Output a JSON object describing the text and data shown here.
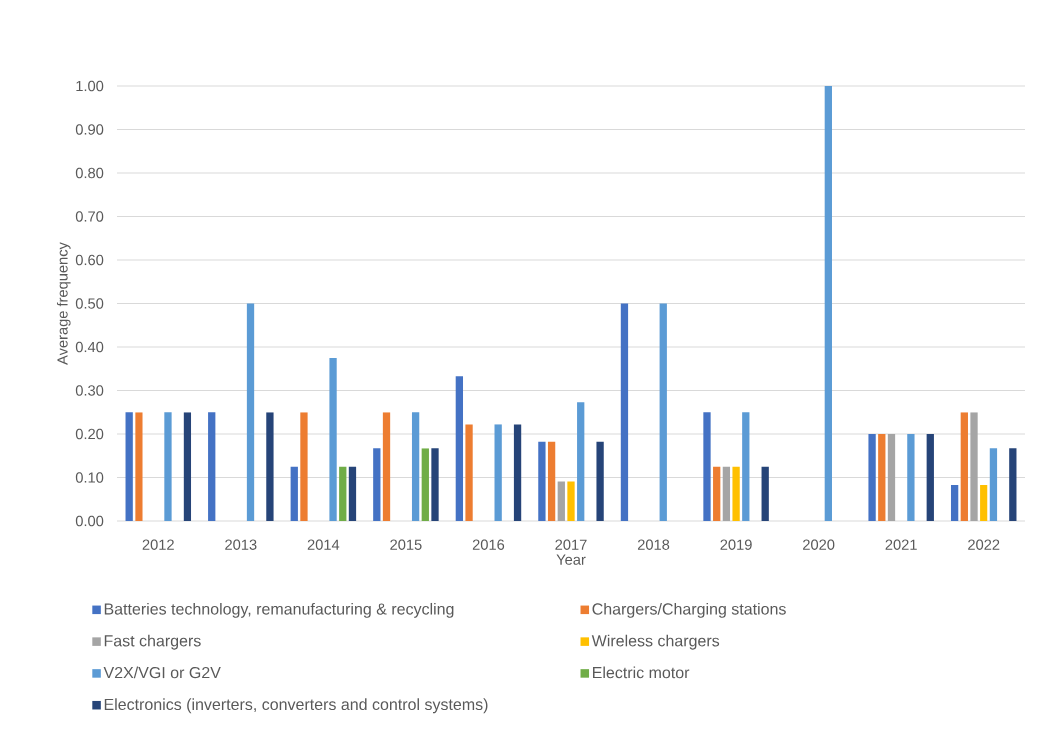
{
  "chart_data": {
    "type": "bar",
    "xlabel": "Year",
    "ylabel": "Average frequency",
    "categories": [
      "2012",
      "2013",
      "2014",
      "2015",
      "2016",
      "2017",
      "2018",
      "2019",
      "2020",
      "2021",
      "2022"
    ],
    "series": [
      {
        "name": "Batteries technology, remanufacturing & recycling",
        "color": "#4472c4",
        "values": [
          0.25,
          0.25,
          0.125,
          0.167,
          0.333,
          0.182,
          0.5,
          0.25,
          null,
          0.2,
          0.083
        ]
      },
      {
        "name": "Chargers/Charging stations",
        "color": "#ed7d31",
        "values": [
          0.25,
          null,
          0.25,
          0.25,
          0.222,
          0.182,
          null,
          0.125,
          null,
          0.2,
          0.25
        ]
      },
      {
        "name": "Fast chargers",
        "color": "#a5a5a5",
        "values": [
          null,
          null,
          null,
          null,
          null,
          0.091,
          null,
          0.125,
          null,
          0.2,
          0.25
        ]
      },
      {
        "name": "Wireless chargers",
        "color": "#ffc000",
        "values": [
          null,
          null,
          null,
          null,
          null,
          0.091,
          null,
          0.125,
          null,
          null,
          0.083
        ]
      },
      {
        "name": "V2X/VGI or G2V",
        "color": "#5b9bd5",
        "values": [
          0.25,
          0.5,
          0.375,
          0.25,
          0.222,
          0.273,
          0.5,
          0.25,
          1.0,
          0.2,
          0.167
        ]
      },
      {
        "name": "Electric motor",
        "color": "#70ad47",
        "values": [
          null,
          null,
          0.125,
          0.167,
          null,
          null,
          null,
          null,
          null,
          null,
          null
        ]
      },
      {
        "name": "Electronics (inverters, converters and control systems)",
        "color": "#264478",
        "values": [
          0.25,
          0.25,
          0.125,
          0.167,
          0.222,
          0.182,
          null,
          0.125,
          null,
          0.2,
          0.167
        ]
      }
    ],
    "ylim": [
      0,
      1
    ],
    "yticks": [
      {
        "value": 0,
        "label": "0.00"
      },
      {
        "value": 0.1,
        "label": "0.10"
      },
      {
        "value": 0.2,
        "label": "0.20"
      },
      {
        "value": 0.3,
        "label": "0.30"
      },
      {
        "value": 0.4,
        "label": "0.40"
      },
      {
        "value": 0.5,
        "label": "0.50"
      },
      {
        "value": 0.6,
        "label": "0.60"
      },
      {
        "value": 0.7,
        "label": "0.70"
      },
      {
        "value": 0.8,
        "label": "0.80"
      },
      {
        "value": 0.9,
        "label": "0.90"
      },
      {
        "value": 1.0,
        "label": "1.00"
      }
    ],
    "grid": "y",
    "legend": "bottom"
  }
}
